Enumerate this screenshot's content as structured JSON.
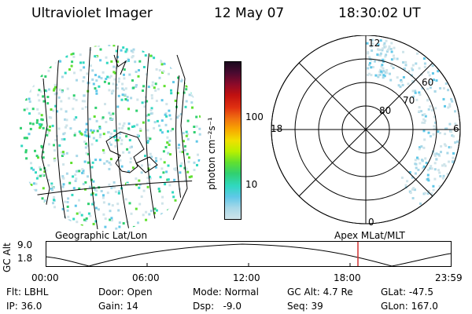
{
  "header": {
    "title": "Ultraviolet Imager",
    "date": "12 May 07",
    "time": "18:30:02 UT"
  },
  "colorbar": {
    "unit_label": "photon cm⁻²s⁻¹",
    "tick_labels": [
      "100",
      "10"
    ],
    "colors": [
      "#1a0a1e",
      "#4b0a30",
      "#8a0a2a",
      "#c01010",
      "#e03010",
      "#f07010",
      "#f8a800",
      "#f0e000",
      "#b8f000",
      "#60e030",
      "#30d070",
      "#30d8c0",
      "#60c8e8",
      "#a8d8e8",
      "#cfe4ea"
    ]
  },
  "polar_plot": {
    "lat_labels": [
      "80",
      "70",
      "60"
    ],
    "mlt_labels": [
      "12",
      "18",
      "6",
      "0"
    ]
  },
  "timeline": {
    "left_label": "Geographic Lat/Lon",
    "right_label": "Apex MLat/MLT",
    "ylabel": "GC Alt",
    "y_ticks": [
      "9.0",
      "1.8"
    ],
    "x_ticks": [
      "00:00",
      "06:00",
      "12:00",
      "18:00",
      "23:59"
    ],
    "marker_color": "#d03030"
  },
  "status": {
    "row1": [
      {
        "label": "Flt: LBHL"
      },
      {
        "label": "Door: Open"
      },
      {
        "label": "Mode: Normal"
      },
      {
        "label": "GC Alt: 4.7 Re"
      },
      {
        "label": "GLat: -47.5"
      }
    ],
    "row2": [
      {
        "label": "IP: 36.0"
      },
      {
        "label": "Gain: 14"
      },
      {
        "label": "Dsp:   -9.0"
      },
      {
        "label": "Seq: 39"
      },
      {
        "label": "GLon: 167.0"
      }
    ]
  }
}
